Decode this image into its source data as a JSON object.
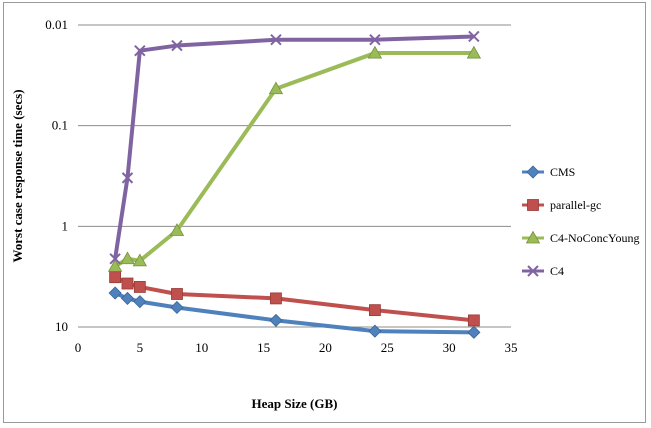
{
  "chart_data": {
    "type": "line",
    "title": "",
    "xlabel": "Heap Size (GB)",
    "ylabel": "Worst case response time (secs)",
    "xlim": [
      0,
      35
    ],
    "xticks": [
      0,
      5,
      10,
      15,
      20,
      25,
      30,
      35
    ],
    "y_scale": "log, reversed (larger values lower)",
    "ylim": [
      10,
      0.01
    ],
    "yticks": [
      0.01,
      0.1,
      1,
      10
    ],
    "ytick_labels": [
      "0.01",
      "0.1",
      "1",
      "10"
    ],
    "grid": "horizontal",
    "legend_position": "right",
    "series": [
      {
        "name": "CMS",
        "color": "#4f81bd",
        "marker": "diamond",
        "x": [
          3,
          4,
          5,
          8,
          16,
          24,
          32
        ],
        "y": [
          4.6,
          5.2,
          5.6,
          6.4,
          8.6,
          11.0,
          11.3
        ]
      },
      {
        "name": "parallel-gc",
        "color": "#c0504d",
        "marker": "square",
        "x": [
          3,
          4,
          5,
          8,
          16,
          24,
          32
        ],
        "y": [
          3.2,
          3.7,
          4.0,
          4.7,
          5.2,
          6.8,
          8.6
        ]
      },
      {
        "name": "C4-NoConcYoung",
        "color": "#9bbb59",
        "marker": "triangle",
        "x": [
          3,
          4,
          5,
          8,
          16,
          24,
          32
        ],
        "y": [
          2.5,
          2.1,
          2.2,
          1.1,
          0.043,
          0.019,
          0.019
        ]
      },
      {
        "name": "C4",
        "color": "#8064a2",
        "marker": "x",
        "x": [
          3,
          4,
          5,
          8,
          16,
          24,
          32
        ],
        "y": [
          2.1,
          0.33,
          0.018,
          0.016,
          0.014,
          0.014,
          0.013
        ]
      }
    ]
  }
}
